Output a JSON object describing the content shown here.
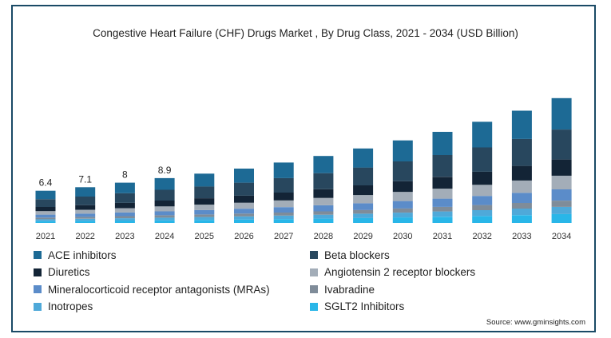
{
  "title": "Congestive Heart Failure (CHF) Drugs Market , By Drug Class, 2021 - 2034 (USD Billion)",
  "source": "Source: www.gminsights.com",
  "chart_data": {
    "type": "bar",
    "stacked": true,
    "title": "Congestive Heart Failure (CHF) Drugs Market , By Drug Class, 2021 - 2034 (USD Billion)",
    "categories": [
      "2021",
      "2022",
      "2023",
      "2024",
      "2025",
      "2026",
      "2027",
      "2028",
      "2029",
      "2030",
      "2031",
      "2032",
      "2033",
      "2034"
    ],
    "totals": [
      6.4,
      7.1,
      8.0,
      8.9,
      9.8,
      10.8,
      12.0,
      13.3,
      14.8,
      16.4,
      18.1,
      20.1,
      22.3,
      24.8
    ],
    "total_labels": [
      "6.4",
      "7.1",
      "8",
      "8.9",
      "",
      "",
      "",
      "",
      "",
      "",
      "",
      "",
      "",
      ""
    ],
    "ylim": [
      0,
      26
    ],
    "grid": false,
    "legend_position": "bottom",
    "series": [
      {
        "name": "SGLT2 Inhibitors",
        "color": "#29b6e8",
        "values": [
          0.36,
          0.41,
          0.47,
          0.53,
          0.6,
          0.67,
          0.76,
          0.86,
          0.97,
          1.09,
          1.23,
          1.38,
          1.56,
          1.76
        ]
      },
      {
        "name": "Inotropes",
        "color": "#4fa9d9",
        "values": [
          0.38,
          0.42,
          0.47,
          0.52,
          0.57,
          0.63,
          0.7,
          0.77,
          0.86,
          0.95,
          1.05,
          1.16,
          1.29,
          1.43
        ]
      },
      {
        "name": "Ivabradine",
        "color": "#7f8c99",
        "values": [
          0.33,
          0.37,
          0.41,
          0.46,
          0.5,
          0.55,
          0.61,
          0.68,
          0.75,
          0.83,
          0.91,
          1.01,
          1.12,
          1.24
        ]
      },
      {
        "name": "Mineralocorticoid receptor antagonists (MRAs)",
        "color": "#5b8cc9",
        "values": [
          0.58,
          0.64,
          0.72,
          0.8,
          0.88,
          0.97,
          1.08,
          1.2,
          1.33,
          1.48,
          1.63,
          1.81,
          2.01,
          2.23
        ]
      },
      {
        "name": "Angiotensin 2 receptor blockers",
        "color": "#a3adb8",
        "values": [
          0.7,
          0.78,
          0.88,
          0.98,
          1.08,
          1.19,
          1.32,
          1.46,
          1.63,
          1.8,
          1.99,
          2.21,
          2.45,
          2.73
        ]
      },
      {
        "name": "Diuretics",
        "color": "#132436",
        "values": [
          0.83,
          0.92,
          1.04,
          1.16,
          1.27,
          1.4,
          1.56,
          1.73,
          1.92,
          2.13,
          2.35,
          2.61,
          2.9,
          3.22
        ]
      },
      {
        "name": "Beta blockers",
        "color": "#28475e",
        "values": [
          1.54,
          1.7,
          1.92,
          2.14,
          2.35,
          2.59,
          2.88,
          3.19,
          3.55,
          3.94,
          4.34,
          4.82,
          5.35,
          5.95
        ]
      },
      {
        "name": "ACE inhibitors",
        "color": "#1d6a95",
        "values": [
          1.68,
          1.86,
          2.09,
          2.31,
          2.55,
          2.8,
          3.09,
          3.41,
          3.79,
          4.18,
          4.6,
          5.1,
          5.62,
          6.24
        ]
      }
    ],
    "legend": [
      {
        "name": "ACE inhibitors",
        "color": "#1d6a95"
      },
      {
        "name": "Beta blockers",
        "color": "#28475e"
      },
      {
        "name": "Diuretics",
        "color": "#132436"
      },
      {
        "name": "Angiotensin 2 receptor blockers",
        "color": "#a3adb8"
      },
      {
        "name": "Mineralocorticoid receptor antagonists (MRAs)",
        "color": "#5b8cc9"
      },
      {
        "name": "Ivabradine",
        "color": "#7f8c99"
      },
      {
        "name": "Inotropes",
        "color": "#4fa9d9"
      },
      {
        "name": "SGLT2 Inhibitors",
        "color": "#29b6e8"
      }
    ]
  }
}
